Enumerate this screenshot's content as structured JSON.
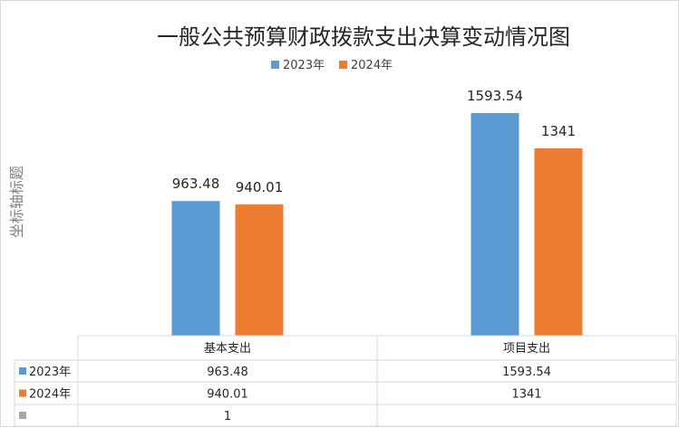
{
  "chart_data": {
    "type": "bar",
    "title": "一般公共预算财政拨款支出决算变动情况图",
    "ylabel": "坐标轴标题",
    "categories": [
      "基本支出",
      "项目支出"
    ],
    "series": [
      {
        "name": "2023年",
        "values": [
          963.48,
          1593.54
        ],
        "labels": [
          "963.48",
          "1593.54"
        ],
        "color": "#5b9bd5"
      },
      {
        "name": "2024年",
        "values": [
          940.01,
          1341
        ],
        "labels": [
          "940.01",
          "1341"
        ],
        "color": "#ed7d31"
      },
      {
        "name": "",
        "values": [
          1,
          null
        ],
        "labels": [
          "1",
          ""
        ],
        "color": "#a5a5a5"
      }
    ],
    "ylim": [
      0,
      1800
    ],
    "legend": "top-center",
    "grid": false,
    "data_table": true
  }
}
